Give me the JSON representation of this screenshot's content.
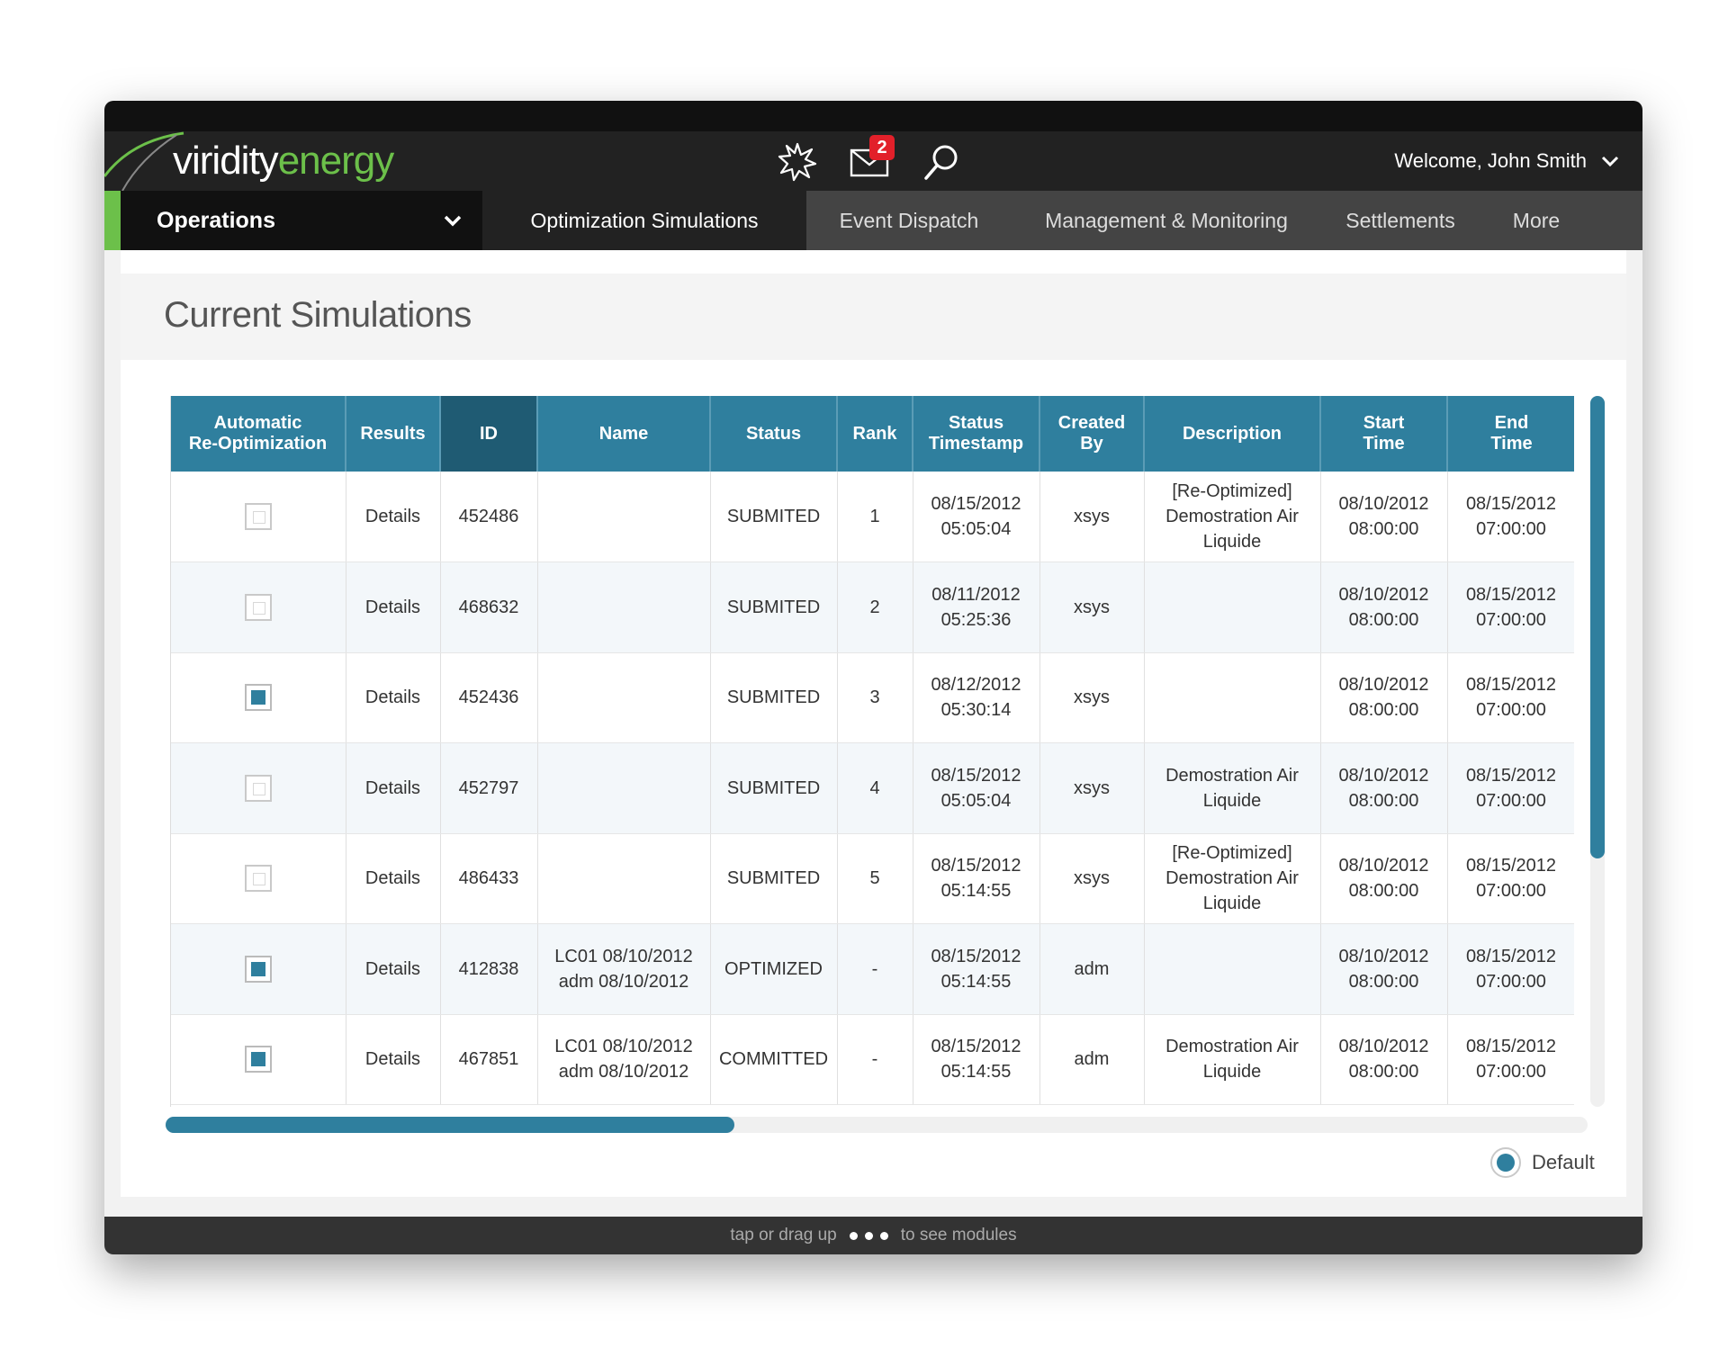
{
  "brand": {
    "word1": "viridity",
    "word2": "energy",
    "green": "#6cc04a",
    "blue": "#2f7f9e"
  },
  "header": {
    "icons": [
      "burst-icon",
      "mail-icon",
      "search-icon"
    ],
    "mail_badge": "2",
    "welcome": "Welcome, John Smith"
  },
  "nav": {
    "section": "Operations",
    "tabs": [
      {
        "label": "Optimization Simulations",
        "active": true
      },
      {
        "label": "Event Dispatch"
      },
      {
        "label": "Management & Monitoring"
      },
      {
        "label": "Settlements"
      },
      {
        "label": "More"
      }
    ]
  },
  "page_title": "Current Simulations",
  "table": {
    "columns": [
      [
        "Automatic",
        "Re-Optimization"
      ],
      [
        "Results"
      ],
      [
        "ID"
      ],
      [
        "Name"
      ],
      [
        "Status"
      ],
      [
        "Rank"
      ],
      [
        "Status",
        "Timestamp"
      ],
      [
        "Created",
        "By"
      ],
      [
        "Description"
      ],
      [
        "Start",
        "Time"
      ],
      [
        "End",
        "Time"
      ]
    ],
    "rows": [
      {
        "auto": false,
        "results": "Details",
        "id": "452486",
        "name": [
          "",
          ""
        ],
        "status": "SUBMITED",
        "rank": "1",
        "ts": [
          "08/15/2012",
          "05:05:04"
        ],
        "by": "xsys",
        "desc": [
          "[Re-Optimized]",
          "Demostration Air",
          "Liquide"
        ],
        "start": [
          "08/10/2012",
          "08:00:00"
        ],
        "end": [
          "08/15/2012",
          "07:00:00"
        ]
      },
      {
        "auto": false,
        "results": "Details",
        "id": "468632",
        "name": [
          "",
          ""
        ],
        "status": "SUBMITED",
        "rank": "2",
        "ts": [
          "08/11/2012",
          "05:25:36"
        ],
        "by": "xsys",
        "desc": [
          "",
          "",
          ""
        ],
        "start": [
          "08/10/2012",
          "08:00:00"
        ],
        "end": [
          "08/15/2012",
          "07:00:00"
        ]
      },
      {
        "auto": true,
        "results": "Details",
        "id": "452436",
        "name": [
          "",
          ""
        ],
        "status": "SUBMITED",
        "rank": "3",
        "ts": [
          "08/12/2012",
          "05:30:14"
        ],
        "by": "xsys",
        "desc": [
          "",
          "",
          ""
        ],
        "start": [
          "08/10/2012",
          "08:00:00"
        ],
        "end": [
          "08/15/2012",
          "07:00:00"
        ]
      },
      {
        "auto": false,
        "results": "Details",
        "id": "452797",
        "name": [
          "",
          ""
        ],
        "status": "SUBMITED",
        "rank": "4",
        "ts": [
          "08/15/2012",
          "05:05:04"
        ],
        "by": "xsys",
        "desc": [
          "",
          "Demostration Air",
          "Liquide"
        ],
        "start": [
          "08/10/2012",
          "08:00:00"
        ],
        "end": [
          "08/15/2012",
          "07:00:00"
        ]
      },
      {
        "auto": false,
        "results": "Details",
        "id": "486433",
        "name": [
          "",
          ""
        ],
        "status": "SUBMITED",
        "rank": "5",
        "ts": [
          "08/15/2012",
          "05:14:55"
        ],
        "by": "xsys",
        "desc": [
          "[Re-Optimized]",
          "Demostration Air",
          "Liquide"
        ],
        "start": [
          "08/10/2012",
          "08:00:00"
        ],
        "end": [
          "08/15/2012",
          "07:00:00"
        ]
      },
      {
        "auto": true,
        "results": "Details",
        "id": "412838",
        "name": [
          "LC01 08/10/2012",
          "adm 08/10/2012"
        ],
        "status": "OPTIMIZED",
        "rank": "-",
        "ts": [
          "08/15/2012",
          "05:14:55"
        ],
        "by": "adm",
        "desc": [
          "",
          "",
          ""
        ],
        "start": [
          "08/10/2012",
          "08:00:00"
        ],
        "end": [
          "08/15/2012",
          "07:00:00"
        ]
      },
      {
        "auto": true,
        "results": "Details",
        "id": "467851",
        "name": [
          "LC01 08/10/2012",
          "adm 08/10/2012"
        ],
        "status": "COMMITTED",
        "rank": "-",
        "ts": [
          "08/15/2012",
          "05:14:55"
        ],
        "by": "adm",
        "desc": [
          "",
          "Demostration Air",
          "Liquide"
        ],
        "start": [
          "08/10/2012",
          "08:00:00"
        ],
        "end": [
          "08/15/2012",
          "07:00:00"
        ]
      }
    ]
  },
  "scroll": {
    "vertical_visible_fraction": 0.65,
    "horizontal_visible_fraction": 0.4
  },
  "view_option": "Default",
  "footer": {
    "left": "tap or drag up",
    "right": "to see modules"
  }
}
